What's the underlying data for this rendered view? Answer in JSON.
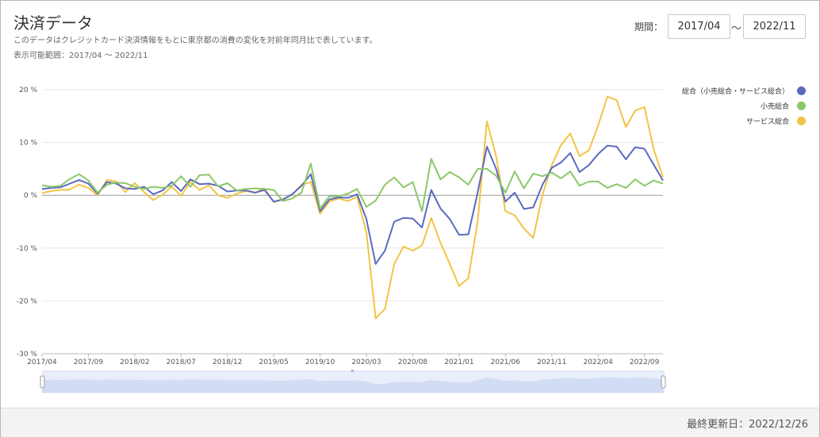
{
  "header": {
    "title": "決済データ",
    "description": "このデータはクレジットカード決済情報をもとに東京都の消費の変化を対前年同月比で表しています。",
    "range_note": "表示可能範囲：2017/04 ～ 2022/11",
    "period_label": "期間：",
    "period_start": "2017/04",
    "period_sep": "～",
    "period_end": "2022/11"
  },
  "footer": {
    "last_updated": "最終更新日：2022/12/26"
  },
  "colors": {
    "total": "#5b6abf",
    "retail": "#8bc86a",
    "service": "#f2c444"
  },
  "chart_data": {
    "type": "line",
    "x": [
      "2017/04",
      "2017/05",
      "2017/06",
      "2017/07",
      "2017/08",
      "2017/09",
      "2017/10",
      "2017/11",
      "2017/12",
      "2018/01",
      "2018/02",
      "2018/03",
      "2018/04",
      "2018/05",
      "2018/06",
      "2018/07",
      "2018/08",
      "2018/09",
      "2018/10",
      "2018/11",
      "2018/12",
      "2019/01",
      "2019/02",
      "2019/03",
      "2019/04",
      "2019/05",
      "2019/06",
      "2019/07",
      "2019/08",
      "2019/09",
      "2019/10",
      "2019/11",
      "2019/12",
      "2020/01",
      "2020/02",
      "2020/03",
      "2020/04",
      "2020/05",
      "2020/06",
      "2020/07",
      "2020/08",
      "2020/09",
      "2020/10",
      "2020/11",
      "2020/12",
      "2021/01",
      "2021/02",
      "2021/03",
      "2021/04",
      "2021/05",
      "2021/06",
      "2021/07",
      "2021/08",
      "2021/09",
      "2021/10",
      "2021/11",
      "2021/12",
      "2022/01",
      "2022/02",
      "2022/03",
      "2022/04",
      "2022/05",
      "2022/06",
      "2022/07",
      "2022/08",
      "2022/09",
      "2022/10",
      "2022/11"
    ],
    "tick_labels": [
      "2017/04",
      "2017/09",
      "2018/02",
      "2018/07",
      "2018/12",
      "2019/05",
      "2019/10",
      "2020/03",
      "2020/08",
      "2021/01",
      "2021/06",
      "2021/11",
      "2022/04",
      "2022/09"
    ],
    "y_ticks": [
      "20 %",
      "10 %",
      "0 %",
      "-10 %",
      "-20 %",
      "-30 %"
    ],
    "ylim": [
      -30,
      20
    ],
    "legend_position": "top-right",
    "series": [
      {
        "name": "総合（小売総合・サービス総合）",
        "color_key": "total",
        "values": [
          1.2,
          1.4,
          1.5,
          2.2,
          2.9,
          2.2,
          0.3,
          2.5,
          2.2,
          1.3,
          1.2,
          1.6,
          0.2,
          0.9,
          2.5,
          0.8,
          3.0,
          2.1,
          2.2,
          1.8,
          0.7,
          0.9,
          0.9,
          0.5,
          1.0,
          -1.2,
          -0.8,
          0.2,
          1.8,
          4.0,
          -3.0,
          -0.8,
          -0.4,
          -0.5,
          0.2,
          -4.5,
          -13.0,
          -10.5,
          -5.0,
          -4.3,
          -4.4,
          -6.1,
          1.0,
          -2.5,
          -4.5,
          -7.5,
          -7.4,
          0.5,
          9.2,
          5.0,
          -1.2,
          0.5,
          -2.6,
          -2.3,
          2.0,
          5.2,
          6.2,
          8.0,
          4.4,
          5.7,
          7.8,
          9.4,
          9.2,
          6.8,
          9.1,
          8.8,
          5.8,
          2.8
        ]
      },
      {
        "name": "小売総合",
        "color_key": "retail",
        "values": [
          1.9,
          1.6,
          1.8,
          3.1,
          4.0,
          2.8,
          0.5,
          2.0,
          2.4,
          2.3,
          1.6,
          1.2,
          1.6,
          1.4,
          1.8,
          3.6,
          1.6,
          3.8,
          3.9,
          1.7,
          2.3,
          0.9,
          1.2,
          1.3,
          1.2,
          1.0,
          -1.1,
          -0.6,
          0.5,
          6.0,
          -2.5,
          -0.2,
          -0.2,
          0.3,
          1.2,
          -2.2,
          -1.0,
          2.0,
          3.4,
          1.5,
          2.5,
          -3.0,
          6.9,
          3.0,
          4.4,
          3.4,
          2.0,
          5.0,
          5.0,
          3.7,
          0.5,
          4.5,
          1.3,
          4.1,
          3.6,
          4.3,
          3.2,
          4.5,
          1.8,
          2.6,
          2.6,
          1.4,
          2.1,
          1.4,
          3.0,
          1.8,
          2.8,
          2.2
        ]
      },
      {
        "name": "サービス総合",
        "color_key": "service",
        "values": [
          0.4,
          0.8,
          1.0,
          1.1,
          2.0,
          1.4,
          0.0,
          2.9,
          2.6,
          0.6,
          2.3,
          0.6,
          -0.9,
          0.1,
          1.6,
          -0.1,
          2.5,
          1.0,
          1.9,
          0.0,
          -0.5,
          0.3,
          0.8,
          0.5,
          1.3,
          -1.3,
          -0.7,
          0.1,
          2.0,
          2.5,
          -3.5,
          -1.2,
          -0.6,
          -1.1,
          -0.3,
          -7.0,
          -23.3,
          -21.5,
          -13.0,
          -9.7,
          -10.5,
          -9.5,
          -4.3,
          -9.0,
          -13.0,
          -17.2,
          -15.7,
          -5.0,
          14.0,
          7.4,
          -3.0,
          -3.8,
          -6.3,
          -8.1,
          0.1,
          5.7,
          9.5,
          11.7,
          7.4,
          8.5,
          13.2,
          18.7,
          18.0,
          12.9,
          16.0,
          16.7,
          8.7,
          3.5
        ]
      }
    ]
  }
}
